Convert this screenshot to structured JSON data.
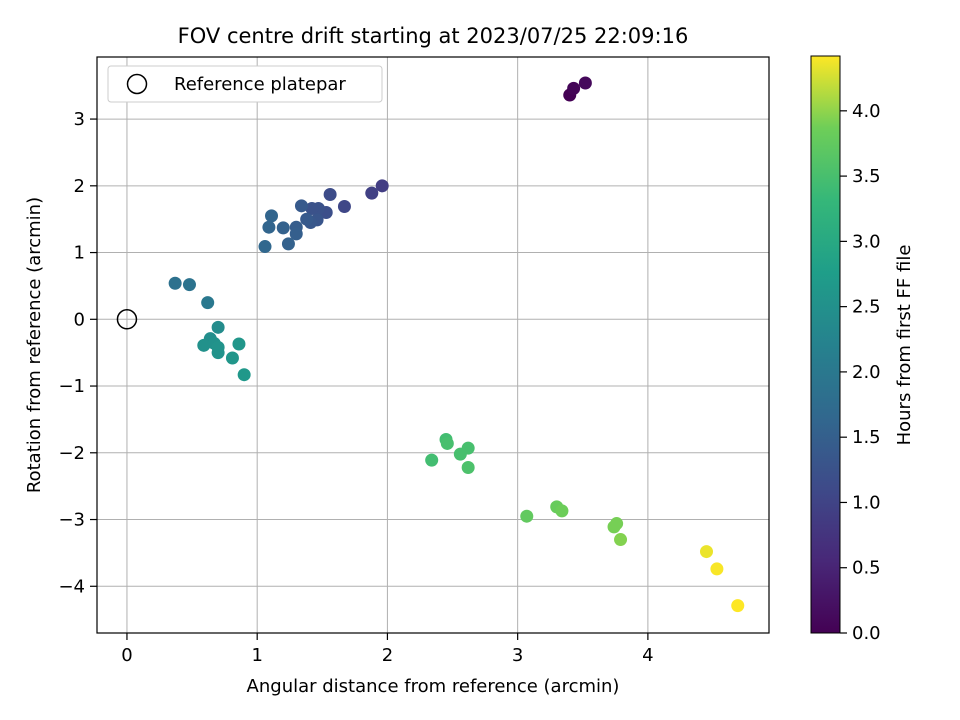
{
  "chart_data": {
    "type": "scatter",
    "title": "FOV centre drift starting at 2023/07/25 22:09:16",
    "xlabel": "Angular distance from reference (arcmin)",
    "ylabel": "Rotation from reference (arcmin)",
    "xlim": [
      -0.23,
      4.93
    ],
    "ylim": [
      -4.7,
      3.93
    ],
    "xticks": [
      0,
      1,
      2,
      3,
      4
    ],
    "yticks": [
      -4,
      -3,
      -2,
      -1,
      0,
      1,
      2,
      3
    ],
    "grid": true,
    "legend": {
      "placement": "upper-left",
      "entries": [
        "Reference platepar"
      ]
    },
    "reference_point": {
      "x": 0,
      "y": 0,
      "label": "Reference platepar"
    },
    "colorbar": {
      "label": "Hours from first FF file",
      "range": [
        0,
        4.42
      ],
      "ticks": [
        "0.0",
        "0.5",
        "1.0",
        "1.5",
        "2.0",
        "2.5",
        "3.0",
        "3.5",
        "4.0"
      ],
      "colormap": "viridis"
    },
    "points": [
      {
        "x": 3.4,
        "y": 3.36,
        "c": 0.0
      },
      {
        "x": 3.43,
        "y": 3.46,
        "c": 0.05
      },
      {
        "x": 3.52,
        "y": 3.54,
        "c": 0.1
      },
      {
        "x": 1.96,
        "y": 2.0,
        "c": 0.9
      },
      {
        "x": 1.88,
        "y": 1.89,
        "c": 0.95
      },
      {
        "x": 1.67,
        "y": 1.69,
        "c": 1.05
      },
      {
        "x": 1.56,
        "y": 1.87,
        "c": 1.15
      },
      {
        "x": 1.53,
        "y": 1.6,
        "c": 1.2
      },
      {
        "x": 1.47,
        "y": 1.66,
        "c": 1.25
      },
      {
        "x": 1.46,
        "y": 1.49,
        "c": 1.3
      },
      {
        "x": 1.42,
        "y": 1.66,
        "c": 1.25
      },
      {
        "x": 1.41,
        "y": 1.45,
        "c": 1.35
      },
      {
        "x": 1.38,
        "y": 1.5,
        "c": 1.4
      },
      {
        "x": 1.34,
        "y": 1.7,
        "c": 1.4
      },
      {
        "x": 1.3,
        "y": 1.38,
        "c": 1.45
      },
      {
        "x": 1.3,
        "y": 1.28,
        "c": 1.5
      },
      {
        "x": 1.24,
        "y": 1.13,
        "c": 1.55
      },
      {
        "x": 1.2,
        "y": 1.37,
        "c": 1.55
      },
      {
        "x": 1.11,
        "y": 1.55,
        "c": 1.6
      },
      {
        "x": 1.09,
        "y": 1.38,
        "c": 1.6
      },
      {
        "x": 1.06,
        "y": 1.09,
        "c": 1.65
      },
      {
        "x": 0.37,
        "y": 0.54,
        "c": 1.85
      },
      {
        "x": 0.48,
        "y": 0.52,
        "c": 1.9
      },
      {
        "x": 0.62,
        "y": 0.25,
        "c": 2.0
      },
      {
        "x": 0.7,
        "y": -0.12,
        "c": 2.4
      },
      {
        "x": 0.64,
        "y": -0.29,
        "c": 2.45
      },
      {
        "x": 0.59,
        "y": -0.39,
        "c": 2.5
      },
      {
        "x": 0.67,
        "y": -0.36,
        "c": 2.5
      },
      {
        "x": 0.7,
        "y": -0.42,
        "c": 2.55
      },
      {
        "x": 0.7,
        "y": -0.5,
        "c": 2.55
      },
      {
        "x": 0.81,
        "y": -0.58,
        "c": 2.6
      },
      {
        "x": 0.86,
        "y": -0.37,
        "c": 2.6
      },
      {
        "x": 0.9,
        "y": -0.83,
        "c": 2.65
      },
      {
        "x": 2.34,
        "y": -2.11,
        "c": 3.45
      },
      {
        "x": 2.45,
        "y": -1.8,
        "c": 3.45
      },
      {
        "x": 2.46,
        "y": -1.86,
        "c": 3.5
      },
      {
        "x": 2.56,
        "y": -2.02,
        "c": 3.5
      },
      {
        "x": 2.62,
        "y": -1.93,
        "c": 3.5
      },
      {
        "x": 2.62,
        "y": -2.22,
        "c": 3.55
      },
      {
        "x": 3.07,
        "y": -2.95,
        "c": 3.75
      },
      {
        "x": 3.3,
        "y": -2.81,
        "c": 3.8
      },
      {
        "x": 3.34,
        "y": -2.87,
        "c": 3.85
      },
      {
        "x": 3.74,
        "y": -3.11,
        "c": 3.9
      },
      {
        "x": 3.76,
        "y": -3.06,
        "c": 3.9
      },
      {
        "x": 3.79,
        "y": -3.3,
        "c": 3.95
      },
      {
        "x": 4.45,
        "y": -3.48,
        "c": 4.35
      },
      {
        "x": 4.53,
        "y": -3.74,
        "c": 4.4
      },
      {
        "x": 4.69,
        "y": -4.29,
        "c": 4.42
      }
    ]
  }
}
